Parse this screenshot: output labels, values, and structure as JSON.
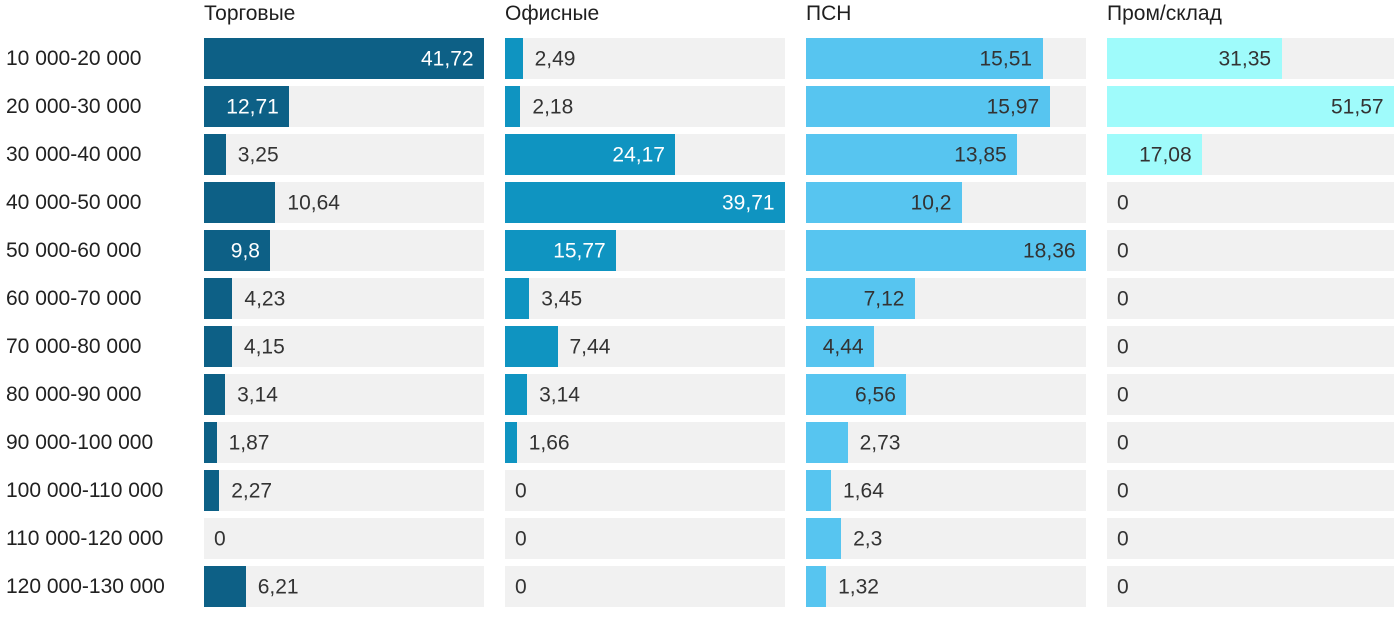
{
  "chart_data": {
    "type": "bar",
    "orientation": "horizontal",
    "value_scaling": "each column normalized to its own max value",
    "grid": false,
    "track_color": "#f1f1f1",
    "outside_label_color": "#333333",
    "categories": [
      "10 000-20 000",
      "20 000-30 000",
      "30 000-40 000",
      "40 000-50 000",
      "50 000-60 000",
      "60 000-70 000",
      "70 000-80 000",
      "80 000-90 000",
      "90 000-100 000",
      "100 000-110 000",
      "110 000-120 000",
      "120 000-130 000"
    ],
    "series": [
      {
        "name": "Торговые",
        "color": "#0d6086",
        "inside_label_color": "#ffffff",
        "xlim": [
          0,
          41.72
        ],
        "values": [
          41.72,
          12.71,
          3.25,
          10.64,
          9.8,
          4.23,
          4.15,
          3.14,
          1.87,
          2.27,
          0,
          6.21
        ],
        "labels": [
          "41,72",
          "12,71",
          "3,25",
          "10,64",
          "9,8",
          "4,23",
          "4,15",
          "3,14",
          "1,87",
          "2,27",
          "0",
          "6,21"
        ]
      },
      {
        "name": "Офисные",
        "color": "#0f94c1",
        "inside_label_color": "#ffffff",
        "xlim": [
          0,
          39.71
        ],
        "values": [
          2.49,
          2.18,
          24.17,
          39.71,
          15.77,
          3.45,
          7.44,
          3.14,
          1.66,
          0,
          0,
          0
        ],
        "labels": [
          "2,49",
          "2,18",
          "24,17",
          "39,71",
          "15,77",
          "3,45",
          "7,44",
          "3,14",
          "1,66",
          "0",
          "0",
          "0"
        ]
      },
      {
        "name": "ПСН",
        "color": "#57c5f0",
        "inside_label_color": "#333333",
        "xlim": [
          0,
          18.36
        ],
        "values": [
          15.51,
          15.97,
          13.85,
          10.2,
          18.36,
          7.12,
          4.44,
          6.56,
          2.73,
          1.64,
          2.3,
          1.32
        ],
        "labels": [
          "15,51",
          "15,97",
          "13,85",
          "10,2",
          "18,36",
          "7,12",
          "4,44",
          "6,56",
          "2,73",
          "1,64",
          "2,3",
          "1,32"
        ]
      },
      {
        "name": "Пром/склад",
        "color": "#9ffbfb",
        "inside_label_color": "#333333",
        "xlim": [
          0,
          51.57
        ],
        "values": [
          31.35,
          51.57,
          17.08,
          0,
          0,
          0,
          0,
          0,
          0,
          0,
          0,
          0
        ],
        "labels": [
          "31,35",
          "51,57",
          "17,08",
          "0",
          "0",
          "0",
          "0",
          "0",
          "0",
          "0",
          "0",
          "0"
        ]
      }
    ]
  }
}
